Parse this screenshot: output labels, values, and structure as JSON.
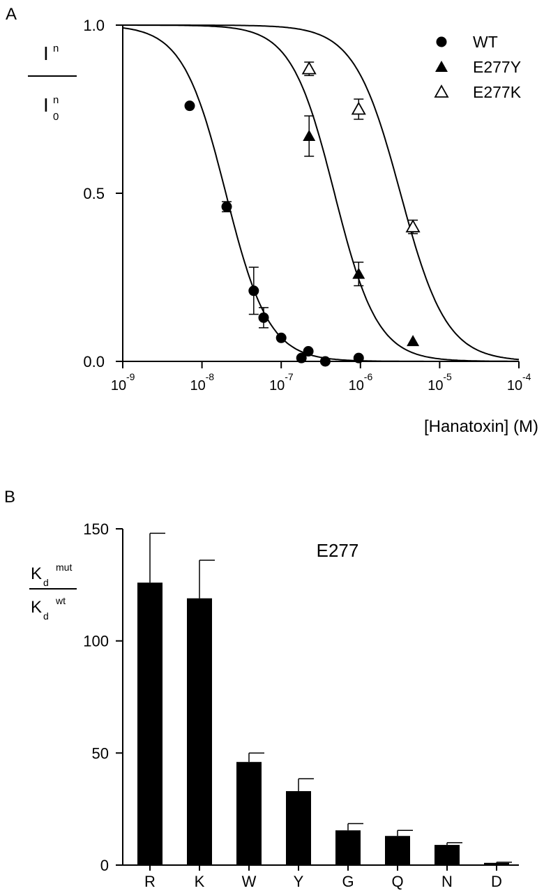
{
  "chart_data": [
    {
      "panel": "A",
      "type": "scatter",
      "xscale": "log",
      "x_exponent_range": [
        -9,
        -4
      ],
      "xlim": [
        1e-09,
        0.0001
      ],
      "ylim": [
        0,
        1
      ],
      "x_ticks": [
        {
          "base": "10",
          "exp": "-9"
        },
        {
          "base": "10",
          "exp": "-8"
        },
        {
          "base": "10",
          "exp": "-7"
        },
        {
          "base": "10",
          "exp": "-6"
        },
        {
          "base": "10",
          "exp": "-5"
        },
        {
          "base": "10",
          "exp": "-4"
        }
      ],
      "y_ticks": [
        {
          "value": 0,
          "label": "0.0"
        },
        {
          "value": 0.5,
          "label": "0.5"
        },
        {
          "value": 1,
          "label": "1.0"
        }
      ],
      "xlabel": "[Hanatoxin] (M)",
      "ylabel": {
        "num_base": "I",
        "num_sup": "n",
        "den_base": "I",
        "den_sup": "n",
        "den_sub": "0"
      },
      "legend_position": "top-right",
      "series": [
        {
          "name": "WT",
          "marker": "filled-circle",
          "kd": 2e-08,
          "hill": 1.6,
          "points": [
            {
              "x": 7e-09,
              "y": 0.76,
              "err": 0
            },
            {
              "x": 2.05e-08,
              "y": 0.46,
              "err": 0.015
            },
            {
              "x": 4.5e-08,
              "y": 0.21,
              "err": 0.07
            },
            {
              "x": 6e-08,
              "y": 0.13,
              "err": 0.03
            },
            {
              "x": 1e-07,
              "y": 0.07,
              "err": 0
            },
            {
              "x": 1.8e-07,
              "y": 0.01,
              "err": 0
            },
            {
              "x": 2.2e-07,
              "y": 0.03,
              "err": 0
            },
            {
              "x": 3.6e-07,
              "y": 0.0,
              "err": 0
            },
            {
              "x": 9.5e-07,
              "y": 0.01,
              "err": 0
            }
          ]
        },
        {
          "name": "E277Y",
          "marker": "filled-triangle",
          "kd": 4.7e-07,
          "hill": 1.6,
          "points": [
            {
              "x": 2.25e-07,
              "y": 0.67,
              "err": 0.06
            },
            {
              "x": 9.5e-07,
              "y": 0.26,
              "err": 0.035
            },
            {
              "x": 4.6e-06,
              "y": 0.06,
              "err": 0
            }
          ]
        },
        {
          "name": "E277K",
          "marker": "open-triangle",
          "kd": 3.2e-06,
          "hill": 1.5,
          "points": [
            {
              "x": 2.25e-07,
              "y": 0.87,
              "err": 0.02
            },
            {
              "x": 9.5e-07,
              "y": 0.75,
              "err": 0.03
            },
            {
              "x": 4.6e-06,
              "y": 0.4,
              "err": 0.02
            }
          ]
        }
      ]
    },
    {
      "panel": "B",
      "type": "bar",
      "title": "E277",
      "categories": [
        "R",
        "K",
        "W",
        "Y",
        "G",
        "Q",
        "N",
        "D"
      ],
      "values": [
        126,
        119,
        46,
        33,
        15.5,
        13,
        9,
        1
      ],
      "errors": [
        22,
        17,
        4,
        5.5,
        3,
        2.5,
        1,
        0.3
      ],
      "ylim": [
        0,
        150
      ],
      "y_ticks": [
        {
          "value": 0,
          "label": "0"
        },
        {
          "value": 50,
          "label": "50"
        },
        {
          "value": 100,
          "label": "100"
        },
        {
          "value": 150,
          "label": "150"
        }
      ],
      "ylabel": {
        "num_base": "K",
        "num_sub": "d",
        "num_sup": "mut",
        "den_base": "K",
        "den_sub": "d",
        "den_sup": "wt"
      }
    }
  ]
}
